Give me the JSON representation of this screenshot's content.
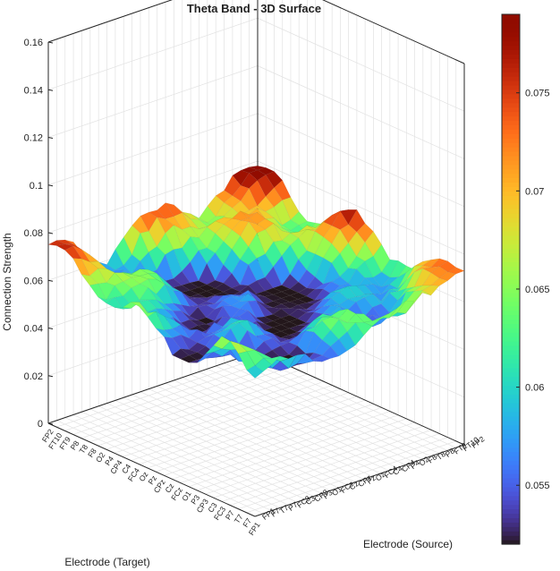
{
  "chart_data": {
    "type": "surface3d",
    "title": "Theta Band - 3D Surface",
    "xlabel": "Electrode (Target)",
    "ylabel": "Electrode (Source)",
    "zlabel": "Connection Strength",
    "zlim": [
      0,
      0.16
    ],
    "zticks": [
      "0",
      "0.02",
      "0.04",
      "0.06",
      "0.08",
      "0.1",
      "0.12",
      "0.14",
      "0.16"
    ],
    "colorbar": {
      "colormap": "turbo",
      "range": [
        0.052,
        0.079
      ],
      "ticks": [
        "0.055",
        "0.06",
        "0.065",
        "0.07",
        "0.075"
      ]
    },
    "target_ticks": [
      "FP1",
      "F7",
      "T7",
      "P7",
      "FC3",
      "C3",
      "CP3",
      "P3",
      "O1",
      "FCz",
      "Cz",
      "CPz",
      "Pz",
      "Oz",
      "FC4",
      "C4",
      "CP4",
      "P4",
      "O2",
      "F8",
      "T8",
      "P8",
      "FT9",
      "FT10",
      "FP2"
    ],
    "source_ticks": [
      "FP1",
      "F7",
      "T7",
      "P7",
      "FC3",
      "C3",
      "CP3",
      "P3",
      "O1",
      "FCz",
      "Cz",
      "CPz",
      "Pz",
      "Oz",
      "FC4",
      "C4",
      "CP4",
      "P4",
      "O2",
      "F8",
      "T8",
      "P8",
      "FT9",
      "FT10",
      "FP2"
    ],
    "surface_summary": {
      "grid_size": 26,
      "corner_values": {
        "front": 0.058,
        "left": 0.075,
        "right": 0.073,
        "back": 0.078
      },
      "center_min": 0.052,
      "max": 0.079
    },
    "grid": true
  }
}
